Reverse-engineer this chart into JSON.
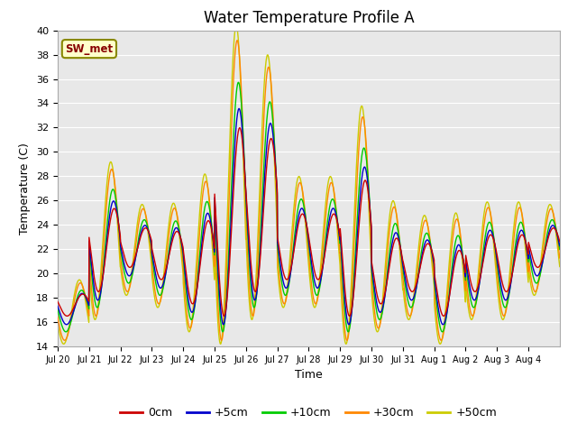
{
  "title": "Water Temperature Profile A",
  "xlabel": "Time",
  "ylabel": "Temperature (C)",
  "ylim": [
    14,
    40
  ],
  "yticks": [
    14,
    16,
    18,
    20,
    22,
    24,
    26,
    28,
    30,
    32,
    34,
    36,
    38,
    40
  ],
  "xtick_labels": [
    "Jul 20",
    "Jul 21",
    "Jul 22",
    "Jul 23",
    "Jul 24",
    "Jul 25",
    "Jul 26",
    "Jul 27",
    "Jul 28",
    "Jul 29",
    "Jul 30",
    "Jul 31",
    "Aug 1",
    "Aug 2",
    "Aug 3",
    "Aug 4"
  ],
  "legend_labels": [
    "0cm",
    "+5cm",
    "+10cm",
    "+30cm",
    "+50cm"
  ],
  "legend_colors": [
    "#cc0000",
    "#0000cc",
    "#00cc00",
    "#ff8800",
    "#cccc00"
  ],
  "annotation_text": "SW_met",
  "annotation_color": "#880000",
  "annotation_bg": "#ffffcc",
  "annotation_border": "#888800",
  "plot_bg": "#e8e8e8",
  "title_fontsize": 12,
  "axis_fontsize": 9,
  "day_peaks_base": [
    19,
    28,
    25,
    25,
    27,
    38,
    36,
    27,
    27,
    32,
    25,
    24,
    24,
    25,
    25,
    25
  ],
  "day_troughs_base": [
    15,
    17,
    19,
    18,
    16,
    15,
    17,
    18,
    18,
    15,
    16,
    17,
    15,
    17,
    17,
    19
  ]
}
